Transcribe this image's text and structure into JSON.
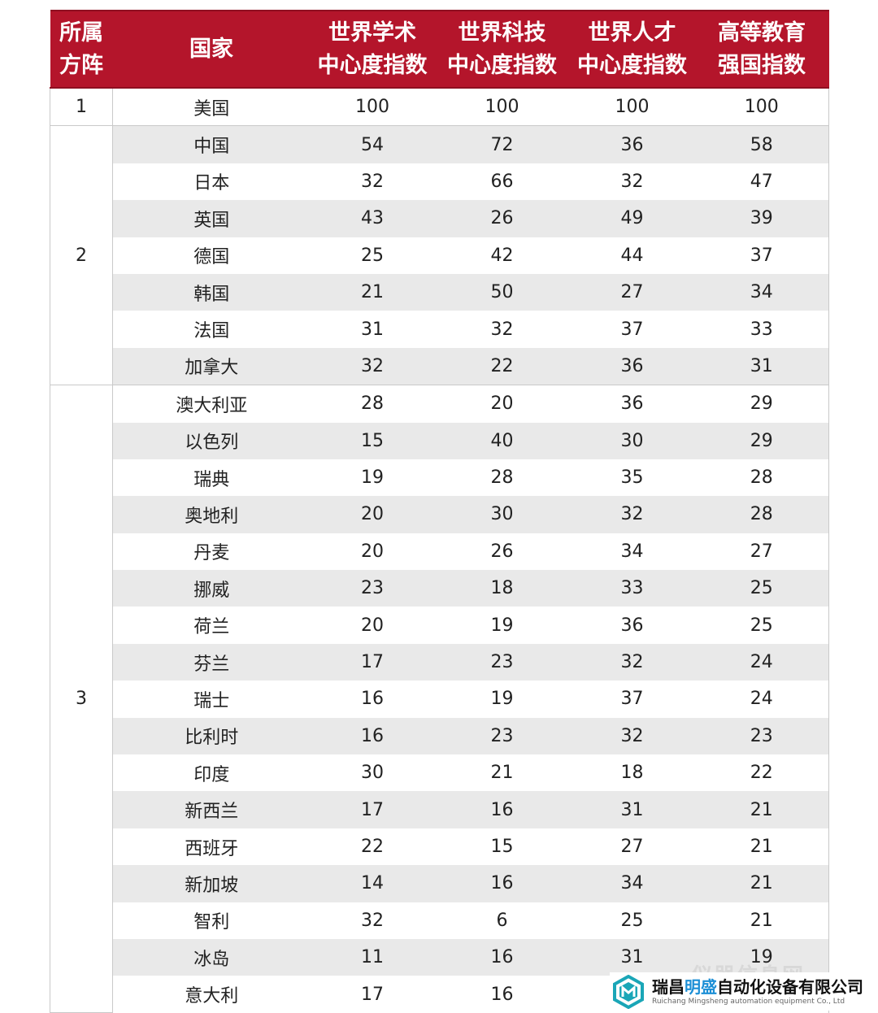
{
  "table": {
    "headers": {
      "group": [
        "所属",
        "方阵"
      ],
      "country": [
        "国家"
      ],
      "academic": [
        "世界学术",
        "中心度指数"
      ],
      "tech": [
        "世界科技",
        "中心度指数"
      ],
      "talent": [
        "世界人才",
        "中心度指数"
      ],
      "education": [
        "高等教育",
        "强国指数"
      ]
    },
    "groups": [
      {
        "label": "1",
        "rows": [
          {
            "country": "美国",
            "academic": "100",
            "tech": "100",
            "talent": "100",
            "education": "100"
          }
        ]
      },
      {
        "label": "2",
        "rows": [
          {
            "country": "中国",
            "academic": "54",
            "tech": "72",
            "talent": "36",
            "education": "58"
          },
          {
            "country": "日本",
            "academic": "32",
            "tech": "66",
            "talent": "32",
            "education": "47"
          },
          {
            "country": "英国",
            "academic": "43",
            "tech": "26",
            "talent": "49",
            "education": "39"
          },
          {
            "country": "德国",
            "academic": "25",
            "tech": "42",
            "talent": "44",
            "education": "37"
          },
          {
            "country": "韩国",
            "academic": "21",
            "tech": "50",
            "talent": "27",
            "education": "34"
          },
          {
            "country": "法国",
            "academic": "31",
            "tech": "32",
            "talent": "37",
            "education": "33"
          },
          {
            "country": "加拿大",
            "academic": "32",
            "tech": "22",
            "talent": "36",
            "education": "31"
          }
        ]
      },
      {
        "label": "3",
        "rows": [
          {
            "country": "澳大利亚",
            "academic": "28",
            "tech": "20",
            "talent": "36",
            "education": "29"
          },
          {
            "country": "以色列",
            "academic": "15",
            "tech": "40",
            "talent": "30",
            "education": "29"
          },
          {
            "country": "瑞典",
            "academic": "19",
            "tech": "28",
            "talent": "35",
            "education": "28"
          },
          {
            "country": "奥地利",
            "academic": "20",
            "tech": "30",
            "talent": "32",
            "education": "28"
          },
          {
            "country": "丹麦",
            "academic": "20",
            "tech": "26",
            "talent": "34",
            "education": "27"
          },
          {
            "country": "挪威",
            "academic": "23",
            "tech": "18",
            "talent": "33",
            "education": "25"
          },
          {
            "country": "荷兰",
            "academic": "20",
            "tech": "19",
            "talent": "36",
            "education": "25"
          },
          {
            "country": "芬兰",
            "academic": "17",
            "tech": "23",
            "talent": "32",
            "education": "24"
          },
          {
            "country": "瑞士",
            "academic": "16",
            "tech": "19",
            "talent": "37",
            "education": "24"
          },
          {
            "country": "比利时",
            "academic": "16",
            "tech": "23",
            "talent": "32",
            "education": "23"
          },
          {
            "country": "印度",
            "academic": "30",
            "tech": "21",
            "talent": "18",
            "education": "22"
          },
          {
            "country": "新西兰",
            "academic": "17",
            "tech": "16",
            "talent": "31",
            "education": "21"
          },
          {
            "country": "西班牙",
            "academic": "22",
            "tech": "15",
            "talent": "27",
            "education": "21"
          },
          {
            "country": "新加坡",
            "academic": "14",
            "tech": "16",
            "talent": "34",
            "education": "21"
          },
          {
            "country": "智利",
            "academic": "32",
            "tech": "6",
            "talent": "25",
            "education": "21"
          },
          {
            "country": "冰岛",
            "academic": "11",
            "tech": "16",
            "talent": "31",
            "education": "19"
          },
          {
            "country": "意大利",
            "academic": "17",
            "tech": "16",
            "talent": "",
            "education": ""
          }
        ]
      }
    ]
  },
  "footer": {
    "watermark": "仪器信息网",
    "company_prefix": "瑞昌",
    "company_highlight": "明盛",
    "company_suffix": "自动化设备有限公司",
    "company_en": "Ruichang Mingsheng automation equipment Co., Ltd",
    "colors": {
      "header_bg": "#b4152b",
      "logo_teal": "#1aa6b7",
      "highlight": "#1c8fd6"
    }
  }
}
